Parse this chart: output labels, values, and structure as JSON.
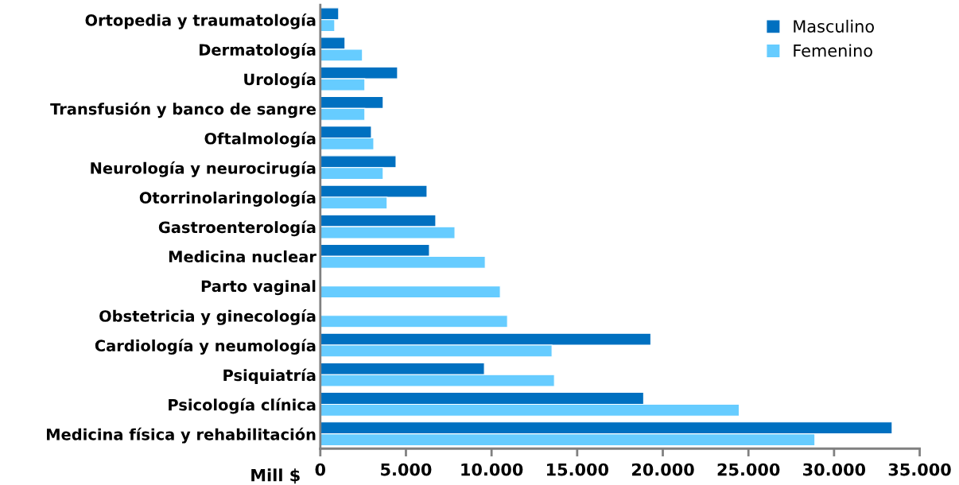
{
  "chart_data": {
    "type": "bar",
    "orientation": "horizontal",
    "xlabel": "Mill $",
    "categories": [
      "Ortopedia y traumatología",
      "Dermatología",
      "Urología",
      "Transfusión y banco de sangre",
      "Oftalmología",
      "Neurología y neurocirugía",
      "Otorrinolaringología",
      "Gastroenterología",
      "Medicina nuclear",
      "Parto vaginal",
      "Obstetricia y ginecología",
      "Cardiología y neumología",
      "Psiquiatría",
      "Psicología clínica",
      "Medicina física y rehabilitación"
    ],
    "series": [
      {
        "name": "Masculino",
        "color": "#0070c0",
        "values": [
          1070,
          1440,
          4510,
          3670,
          2980,
          4420,
          6230,
          6740,
          6370,
          null,
          null,
          19300,
          9580,
          18880,
          33390
        ]
      },
      {
        "name": "Femenino",
        "color": "#66ccff",
        "values": [
          840,
          2460,
          2600,
          2600,
          3120,
          3670,
          3900,
          7860,
          9630,
          10510,
          10930,
          13530,
          13670,
          24460,
          28880
        ]
      }
    ],
    "xlim": [
      0,
      35000
    ],
    "xticks": [
      0,
      {
        "value": 5000,
        "label": "5.000"
      },
      {
        "value": 10000,
        "label": "10.000"
      },
      {
        "value": 15000,
        "label": "15.000"
      },
      {
        "value": 20000,
        "label": "20.000"
      },
      {
        "value": 25000,
        "label": "25.000"
      },
      {
        "value": 30000,
        "label": "30.000"
      },
      {
        "value": 35000,
        "label": "35.000"
      }
    ],
    "grid": false,
    "legend": "top right"
  }
}
